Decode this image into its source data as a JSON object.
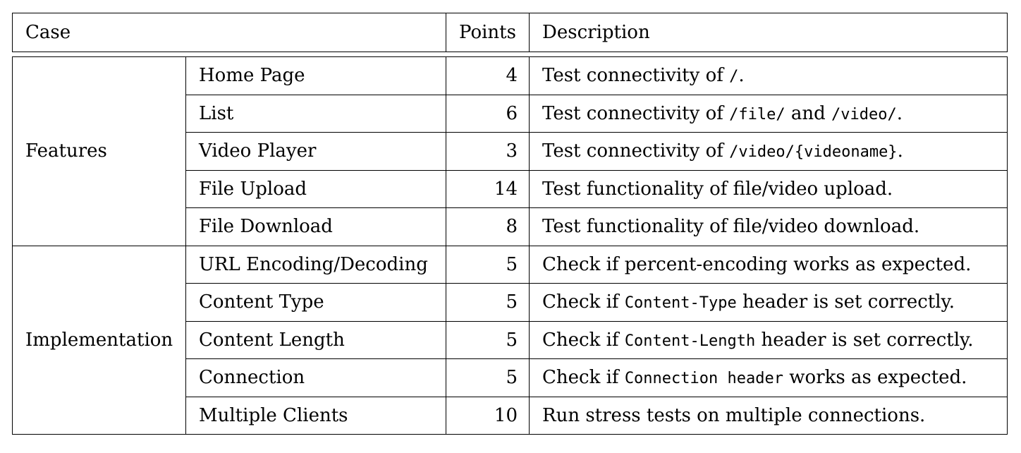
{
  "header": {
    "case": "Case",
    "points": "Points",
    "description": "Description"
  },
  "groups": [
    {
      "name": "Features",
      "rows": [
        {
          "case": "Home Page",
          "points": "4",
          "desc": [
            {
              "text": "Test connectivity of "
            },
            {
              "code": "/"
            },
            {
              "text": "."
            }
          ]
        },
        {
          "case": "List",
          "points": "6",
          "desc": [
            {
              "text": "Test connectivity of "
            },
            {
              "code": "/file/"
            },
            {
              "text": " and "
            },
            {
              "code": "/video/"
            },
            {
              "text": "."
            }
          ]
        },
        {
          "case": "Video Player",
          "points": "3",
          "desc": [
            {
              "text": "Test connectivity of "
            },
            {
              "code": "/video/{videoname}"
            },
            {
              "text": "."
            }
          ]
        },
        {
          "case": "File Upload",
          "points": "14",
          "desc": [
            {
              "text": "Test functionality of file/video upload."
            }
          ]
        },
        {
          "case": "File Download",
          "points": "8",
          "desc": [
            {
              "text": "Test functionality of file/video download."
            }
          ]
        }
      ]
    },
    {
      "name": "Implementation",
      "rows": [
        {
          "case": "URL Encoding/Decoding",
          "points": "5",
          "desc": [
            {
              "text": "Check if percent-encoding works as expected."
            }
          ]
        },
        {
          "case": "Content Type",
          "points": "5",
          "desc": [
            {
              "text": "Check if "
            },
            {
              "code": "Content-Type"
            },
            {
              "text": " header is set correctly."
            }
          ]
        },
        {
          "case": "Content Length",
          "points": "5",
          "desc": [
            {
              "text": "Check if "
            },
            {
              "code": "Content-Length"
            },
            {
              "text": " header is set correctly."
            }
          ]
        },
        {
          "case": "Connection",
          "points": "5",
          "desc": [
            {
              "text": "Check if "
            },
            {
              "code": "Connection header"
            },
            {
              "text": " works as expected."
            }
          ]
        },
        {
          "case": "Multiple Clients",
          "points": "10",
          "desc": [
            {
              "text": "Run stress tests on multiple connections."
            }
          ]
        }
      ]
    }
  ]
}
